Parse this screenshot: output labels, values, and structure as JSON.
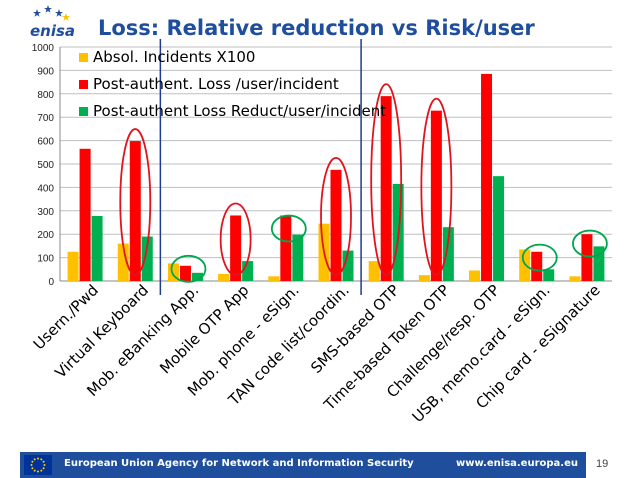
{
  "slide": {
    "title": "Loss: Relative reduction vs Risk/user",
    "logo_text": "enisa",
    "footer_agency": "European Union Agency for Network and Information Security",
    "footer_url": "www.enisa.europa.eu",
    "page_number": "19"
  },
  "colors": {
    "title": "#1f4e9c",
    "footer_bar": "#1f4e9c",
    "series_1": "#ffc000",
    "series_2": "#ff0000",
    "series_3": "#00b050",
    "highlight_ellipse_red": "#e0141e",
    "highlight_ellipse_green": "#00a550",
    "divider_line": "#1f3d8c"
  },
  "icons": {
    "logo": "enisa-logo",
    "flag": "eu-flag-icon"
  },
  "chart_data": {
    "type": "bar",
    "categories": [
      "Usern./Pwd",
      "Virtual Keyboard",
      "Mob. eBanking App.",
      "Mobile OTP App",
      "Mob. phone - eSign.",
      "TAN code list/coordin.",
      "SMS-based OTP",
      "Time-based Token OTP",
      "Challenge/resp. OTP",
      "USB, memo.card - eSign.",
      "Chip card - eSignature"
    ],
    "series": [
      {
        "name": "Absol. Incidents X100",
        "values": [
          125,
          160,
          75,
          30,
          20,
          245,
          85,
          25,
          45,
          135,
          20
        ]
      },
      {
        "name": "Post-authent. Loss /user/incident",
        "values": [
          565,
          598,
          65,
          280,
          280,
          475,
          790,
          728,
          885,
          125,
          200
        ]
      },
      {
        "name": "Post-authent Loss Reduct/user/incident",
        "values": [
          278,
          190,
          35,
          85,
          198,
          130,
          415,
          230,
          448,
          50,
          148
        ]
      }
    ],
    "ylim": [
      0,
      1000
    ],
    "yticks": [
      "0",
      "100",
      "200",
      "300",
      "400",
      "500",
      "600",
      "700",
      "800",
      "900",
      "1000"
    ],
    "grid": true,
    "legend": "top-left, inside plot",
    "annotations": {
      "red_ellipses_around": [
        "Virtual Keyboard",
        "Mobile OTP App",
        "TAN code list/coordin.",
        "SMS-based OTP",
        "Time-based Token OTP"
      ],
      "green_ellipses_around": [
        "Mob. eBanking App.",
        "Mob. phone - eSign.",
        "USB, memo.card - eSign.",
        "Chip card - eSignature"
      ],
      "vertical_divider_lines_after": [
        "Virtual Keyboard",
        "TAN code list/coordin."
      ]
    }
  }
}
